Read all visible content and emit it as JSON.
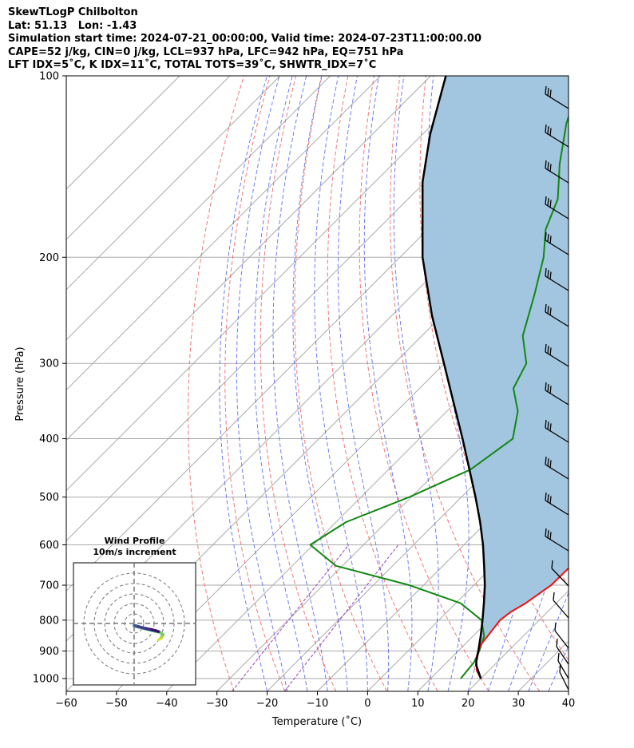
{
  "header": {
    "line1": "SkewTLogP Chilbolton",
    "line2": "Lat: 51.13   Lon: -1.43",
    "line3": "Simulation start time: 2024-07-21_00:00:00, Valid time: 2024-07-23T11:00:00.00",
    "line4": "CAPE=52 j/kg, CIN=0 j/kg, LCL=937 hPa, LFC=942 hPa, EQ=751 hPa",
    "line5": "LFT IDX=5˚C, K IDX=11˚C, TOTAL TOTS=39˚C, SHWTR_IDX=7˚C"
  },
  "hodograph": {
    "title_line1": "Wind Profile",
    "title_line2": "10m/s increment"
  },
  "colors": {
    "temperature": "#ee1111",
    "dewpoint": "#118811",
    "parcel": "#000000",
    "cape_fill": "#a3c6e0",
    "isotherm": "#aaaaaa",
    "dry_adiabat": "#ee5555",
    "moist_adiabat": "#5566ee",
    "mixing_ratio": "#9944bb"
  },
  "chart_data": {
    "type": "line",
    "xlabel": "Temperature (˚C)",
    "ylabel": "Pressure (hPa)",
    "xlim": [
      -60,
      40
    ],
    "ylim": [
      1050,
      100
    ],
    "yscale": "log",
    "x_ticks": [
      "−60",
      "−50",
      "−40",
      "−30",
      "−20",
      "−10",
      "0",
      "10",
      "20",
      "30",
      "40"
    ],
    "y_ticks": [
      "100",
      "200",
      "300",
      "400",
      "500",
      "600",
      "700",
      "800",
      "900",
      "1000"
    ],
    "grid": true,
    "series": [
      {
        "key": "temperature",
        "points": [
          [
            1000,
            20.0
          ],
          [
            970,
            17.6
          ],
          [
            950,
            16.5
          ],
          [
            925,
            15.0
          ],
          [
            900,
            14.0
          ],
          [
            875,
            13.2
          ],
          [
            850,
            12.9
          ],
          [
            800,
            12.2
          ],
          [
            775,
            12.7
          ],
          [
            750,
            13.9
          ],
          [
            700,
            15.4
          ],
          [
            650,
            15.5
          ],
          [
            600,
            13.4
          ],
          [
            550,
            10.4
          ],
          [
            500,
            6.7
          ],
          [
            450,
            2.2
          ],
          [
            400,
            -3.7
          ],
          [
            350,
            -10.4
          ],
          [
            300,
            -18.1
          ],
          [
            285,
            -21.9
          ],
          [
            260,
            -28.3
          ],
          [
            230,
            -35.4
          ],
          [
            200,
            -42.1
          ],
          [
            180,
            -47.5
          ],
          [
            160,
            -51.7
          ],
          [
            140,
            -57.3
          ],
          [
            120,
            -63.6
          ],
          [
            110,
            -66.2
          ],
          [
            100,
            -69.5
          ]
        ]
      },
      {
        "key": "dewpoint",
        "points": [
          [
            1000,
            16.0
          ],
          [
            970,
            15.7
          ],
          [
            940,
            15.4
          ],
          [
            900,
            14.2
          ],
          [
            850,
            12.2
          ],
          [
            800,
            8.5
          ],
          [
            750,
            1.0
          ],
          [
            700,
            -12.8
          ],
          [
            650,
            -31.3
          ],
          [
            600,
            -40.6
          ],
          [
            550,
            -38.0
          ],
          [
            500,
            -30.4
          ],
          [
            450,
            -23.7
          ],
          [
            400,
            -21.4
          ],
          [
            360,
            -25.9
          ],
          [
            330,
            -31.3
          ],
          [
            300,
            -33.7
          ],
          [
            270,
            -39.9
          ],
          [
            230,
            -45.9
          ],
          [
            200,
            -51.4
          ],
          [
            180,
            -56.5
          ],
          [
            160,
            -60.2
          ],
          [
            140,
            -66.8
          ],
          [
            120,
            -73.5
          ],
          [
            100,
            -80.0
          ]
        ]
      },
      {
        "key": "parcel",
        "points": [
          [
            1000,
            20.0
          ],
          [
            950,
            16.4
          ],
          [
            937,
            15.7
          ],
          [
            900,
            14.0
          ],
          [
            850,
            11.5
          ],
          [
            800,
            8.7
          ],
          [
            750,
            5.6
          ],
          [
            700,
            2.2
          ],
          [
            650,
            -1.8
          ],
          [
            600,
            -6.2
          ],
          [
            550,
            -11.3
          ],
          [
            500,
            -17.2
          ],
          [
            450,
            -23.9
          ],
          [
            400,
            -31.4
          ],
          [
            350,
            -40.1
          ],
          [
            300,
            -50.1
          ],
          [
            250,
            -62.0
          ],
          [
            200,
            -75.5
          ],
          [
            150,
            -90.5
          ],
          [
            125,
            -98.5
          ],
          [
            100,
            -107.0
          ]
        ]
      }
    ],
    "hodograph_wind": {
      "u": [
        12.0,
        13.5,
        14.2,
        13.0,
        11.0,
        9.0,
        7.0,
        5.0,
        3.0,
        1.0,
        0.0,
        0.5,
        2.0,
        4.0,
        6.0,
        8.5,
        10.5,
        12.0
      ],
      "v": [
        -8.0,
        -7.0,
        -5.5,
        -4.5,
        -4.0,
        -3.5,
        -3.0,
        -2.5,
        -2.0,
        -1.5,
        -1.0,
        -1.0,
        -1.5,
        -2.0,
        -2.5,
        -3.0,
        -3.5,
        -4.0
      ]
    }
  }
}
